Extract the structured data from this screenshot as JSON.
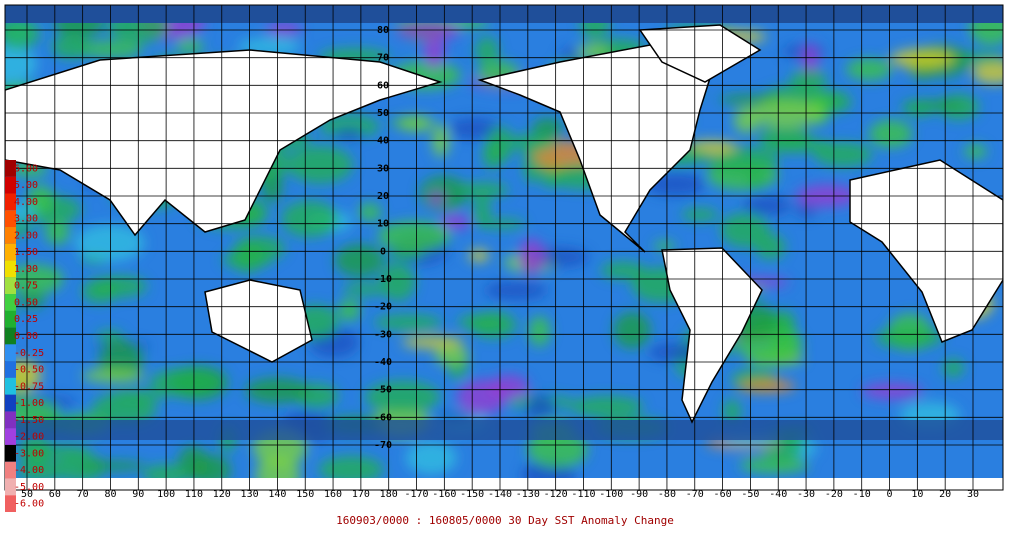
{
  "map": {
    "longitude_labels": [
      "50",
      "60",
      "70",
      "80",
      "90",
      "100",
      "110",
      "120",
      "130",
      "140",
      "150",
      "160",
      "170",
      "180",
      "-170",
      "-160",
      "-150",
      "-140",
      "-130",
      "-120",
      "-110",
      "-100",
      "-90",
      "-80",
      "-70",
      "-60",
      "-50",
      "-40",
      "-30",
      "-20",
      "-10",
      "0",
      "10",
      "20",
      "30"
    ],
    "latitude_labels": [
      "80",
      "70",
      "60",
      "50",
      "40",
      "30",
      "20",
      "10",
      "0",
      "-10",
      "-20",
      "-30",
      "-40",
      "-50",
      "-60",
      "-70"
    ]
  },
  "legend": {
    "labels": [
      "6.00",
      "5.00",
      "4.00",
      "3.00",
      "2.00",
      "1.50",
      "1.00",
      "0.75",
      "0.50",
      "0.25",
      "0.00",
      "-0.25",
      "-0.50",
      "-0.75",
      "-1.00",
      "-1.50",
      "-2.00",
      "-3.00",
      "-4.00",
      "-5.00",
      "-6.00"
    ]
  },
  "caption": "160903/0000 : 160805/0000 30 Day SST Anomaly Change"
}
